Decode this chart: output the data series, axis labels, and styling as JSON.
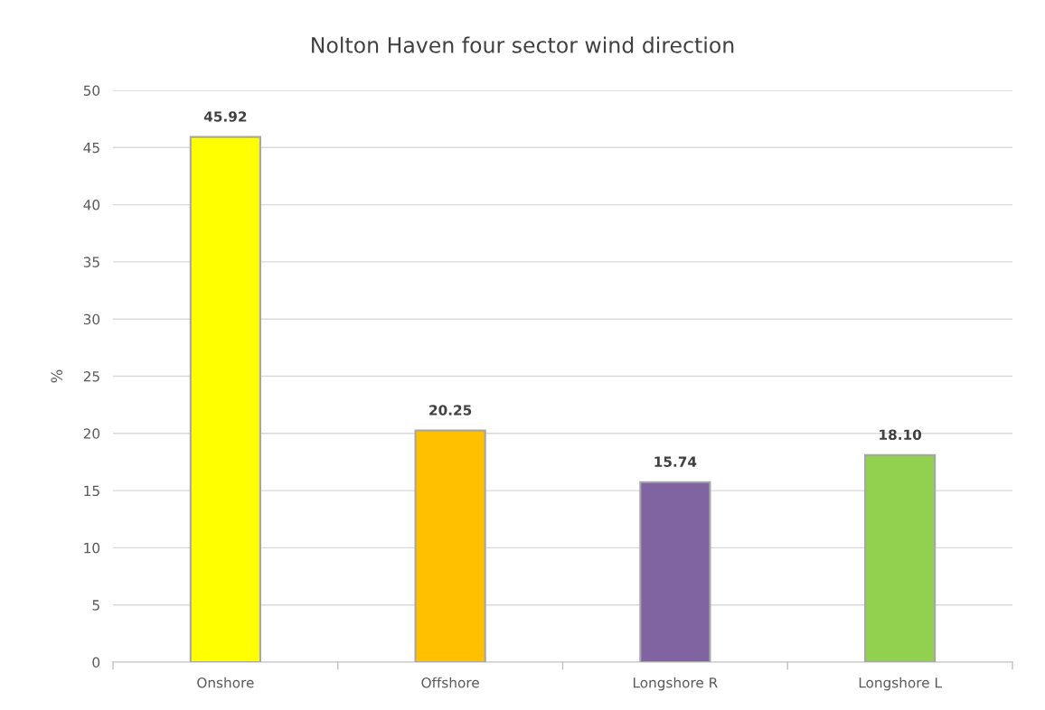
{
  "chart_data": {
    "type": "bar",
    "title": "Nolton Haven four sector wind direction",
    "ylabel": "%",
    "categories": [
      "Onshore",
      "Offshore",
      "Longshore R",
      "Longshore L"
    ],
    "values": [
      45.92,
      20.25,
      15.74,
      18.1
    ],
    "colors": [
      "#ffff00",
      "#ffc000",
      "#8064a2",
      "#92d050"
    ],
    "value_labels": [
      "45.92",
      "20.25",
      "15.74",
      "18.10"
    ],
    "ylim": [
      0,
      50
    ],
    "yticks": [
      0,
      5,
      10,
      15,
      20,
      25,
      30,
      35,
      40,
      45,
      50
    ],
    "grid": "y"
  }
}
